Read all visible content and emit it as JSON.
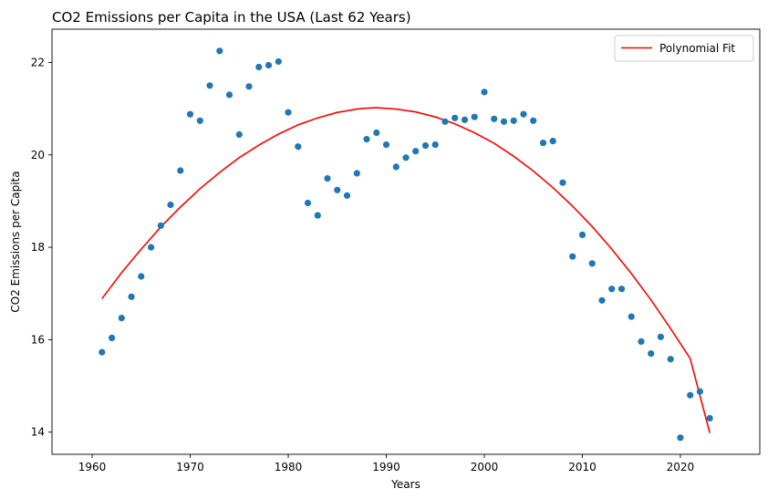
{
  "chart_data": {
    "type": "scatter",
    "title": "CO2 Emissions per Capita in the USA (Last 62 Years)",
    "xlabel": "Years",
    "ylabel": "CO2 Emissions per Capita",
    "xlim": [
      1955.9,
      2028.1
    ],
    "ylim": [
      13.52,
      22.72
    ],
    "xticks": [
      1960,
      1970,
      1980,
      1990,
      2000,
      2010,
      2020
    ],
    "yticks": [
      14,
      16,
      18,
      20,
      22
    ],
    "xtick_labels": [
      "1960",
      "1970",
      "1980",
      "1990",
      "2000",
      "2010",
      "2020"
    ],
    "ytick_labels": [
      "14",
      "16",
      "18",
      "20",
      "22"
    ],
    "grid": false,
    "legend_position": "top-right",
    "colors": {
      "points": "#1f77b4",
      "fit": "#ff0000"
    },
    "series": [
      {
        "kind": "scatter",
        "x": [
          1961,
          1962,
          1963,
          1964,
          1965,
          1966,
          1967,
          1968,
          1969,
          1970,
          1971,
          1972,
          1973,
          1974,
          1975,
          1976,
          1977,
          1978,
          1979,
          1980,
          1981,
          1982,
          1983,
          1984,
          1985,
          1986,
          1987,
          1988,
          1989,
          1990,
          1991,
          1992,
          1993,
          1994,
          1995,
          1996,
          1997,
          1998,
          1999,
          2000,
          2001,
          2002,
          2003,
          2004,
          2005,
          2006,
          2007,
          2008,
          2009,
          2010,
          2011,
          2012,
          2013,
          2014,
          2015,
          2016,
          2017,
          2018,
          2019,
          2020,
          2021,
          2022,
          2023
        ],
        "y": [
          15.73,
          16.04,
          16.47,
          16.93,
          17.37,
          18.0,
          18.47,
          18.92,
          19.66,
          20.88,
          20.74,
          21.5,
          22.25,
          21.3,
          20.44,
          21.48,
          21.9,
          21.94,
          22.02,
          20.92,
          20.18,
          18.96,
          18.69,
          19.49,
          19.24,
          19.12,
          19.6,
          20.34,
          20.48,
          20.22,
          19.74,
          19.94,
          20.08,
          20.2,
          20.22,
          20.72,
          20.8,
          20.76,
          20.82,
          21.36,
          20.78,
          20.72,
          20.74,
          20.88,
          20.74,
          20.26,
          20.3,
          19.4,
          17.8,
          18.27,
          17.65,
          16.85,
          17.1,
          17.1,
          16.5,
          15.96,
          15.7,
          16.06,
          15.58,
          13.88,
          14.8,
          14.88,
          14.3
        ]
      },
      {
        "kind": "line",
        "name": "Polynomial Fit",
        "x": [
          1961,
          1963,
          1965,
          1967,
          1969,
          1971,
          1973,
          1975,
          1977,
          1979,
          1981,
          1983,
          1985,
          1987,
          1988,
          1989,
          1991,
          1993,
          1995,
          1997,
          1999,
          2001,
          2003,
          2005,
          2007,
          2009,
          2011,
          2013,
          2015,
          2017,
          2019,
          2021,
          2023
        ],
        "y": [
          16.89,
          17.45,
          17.96,
          18.44,
          18.87,
          19.27,
          19.62,
          19.94,
          20.21,
          20.45,
          20.65,
          20.8,
          20.92,
          20.99,
          21.01,
          21.02,
          20.99,
          20.93,
          20.82,
          20.67,
          20.48,
          20.25,
          19.97,
          19.65,
          19.29,
          18.89,
          18.45,
          17.96,
          17.43,
          16.86,
          16.24,
          15.59,
          13.98
        ]
      }
    ]
  }
}
